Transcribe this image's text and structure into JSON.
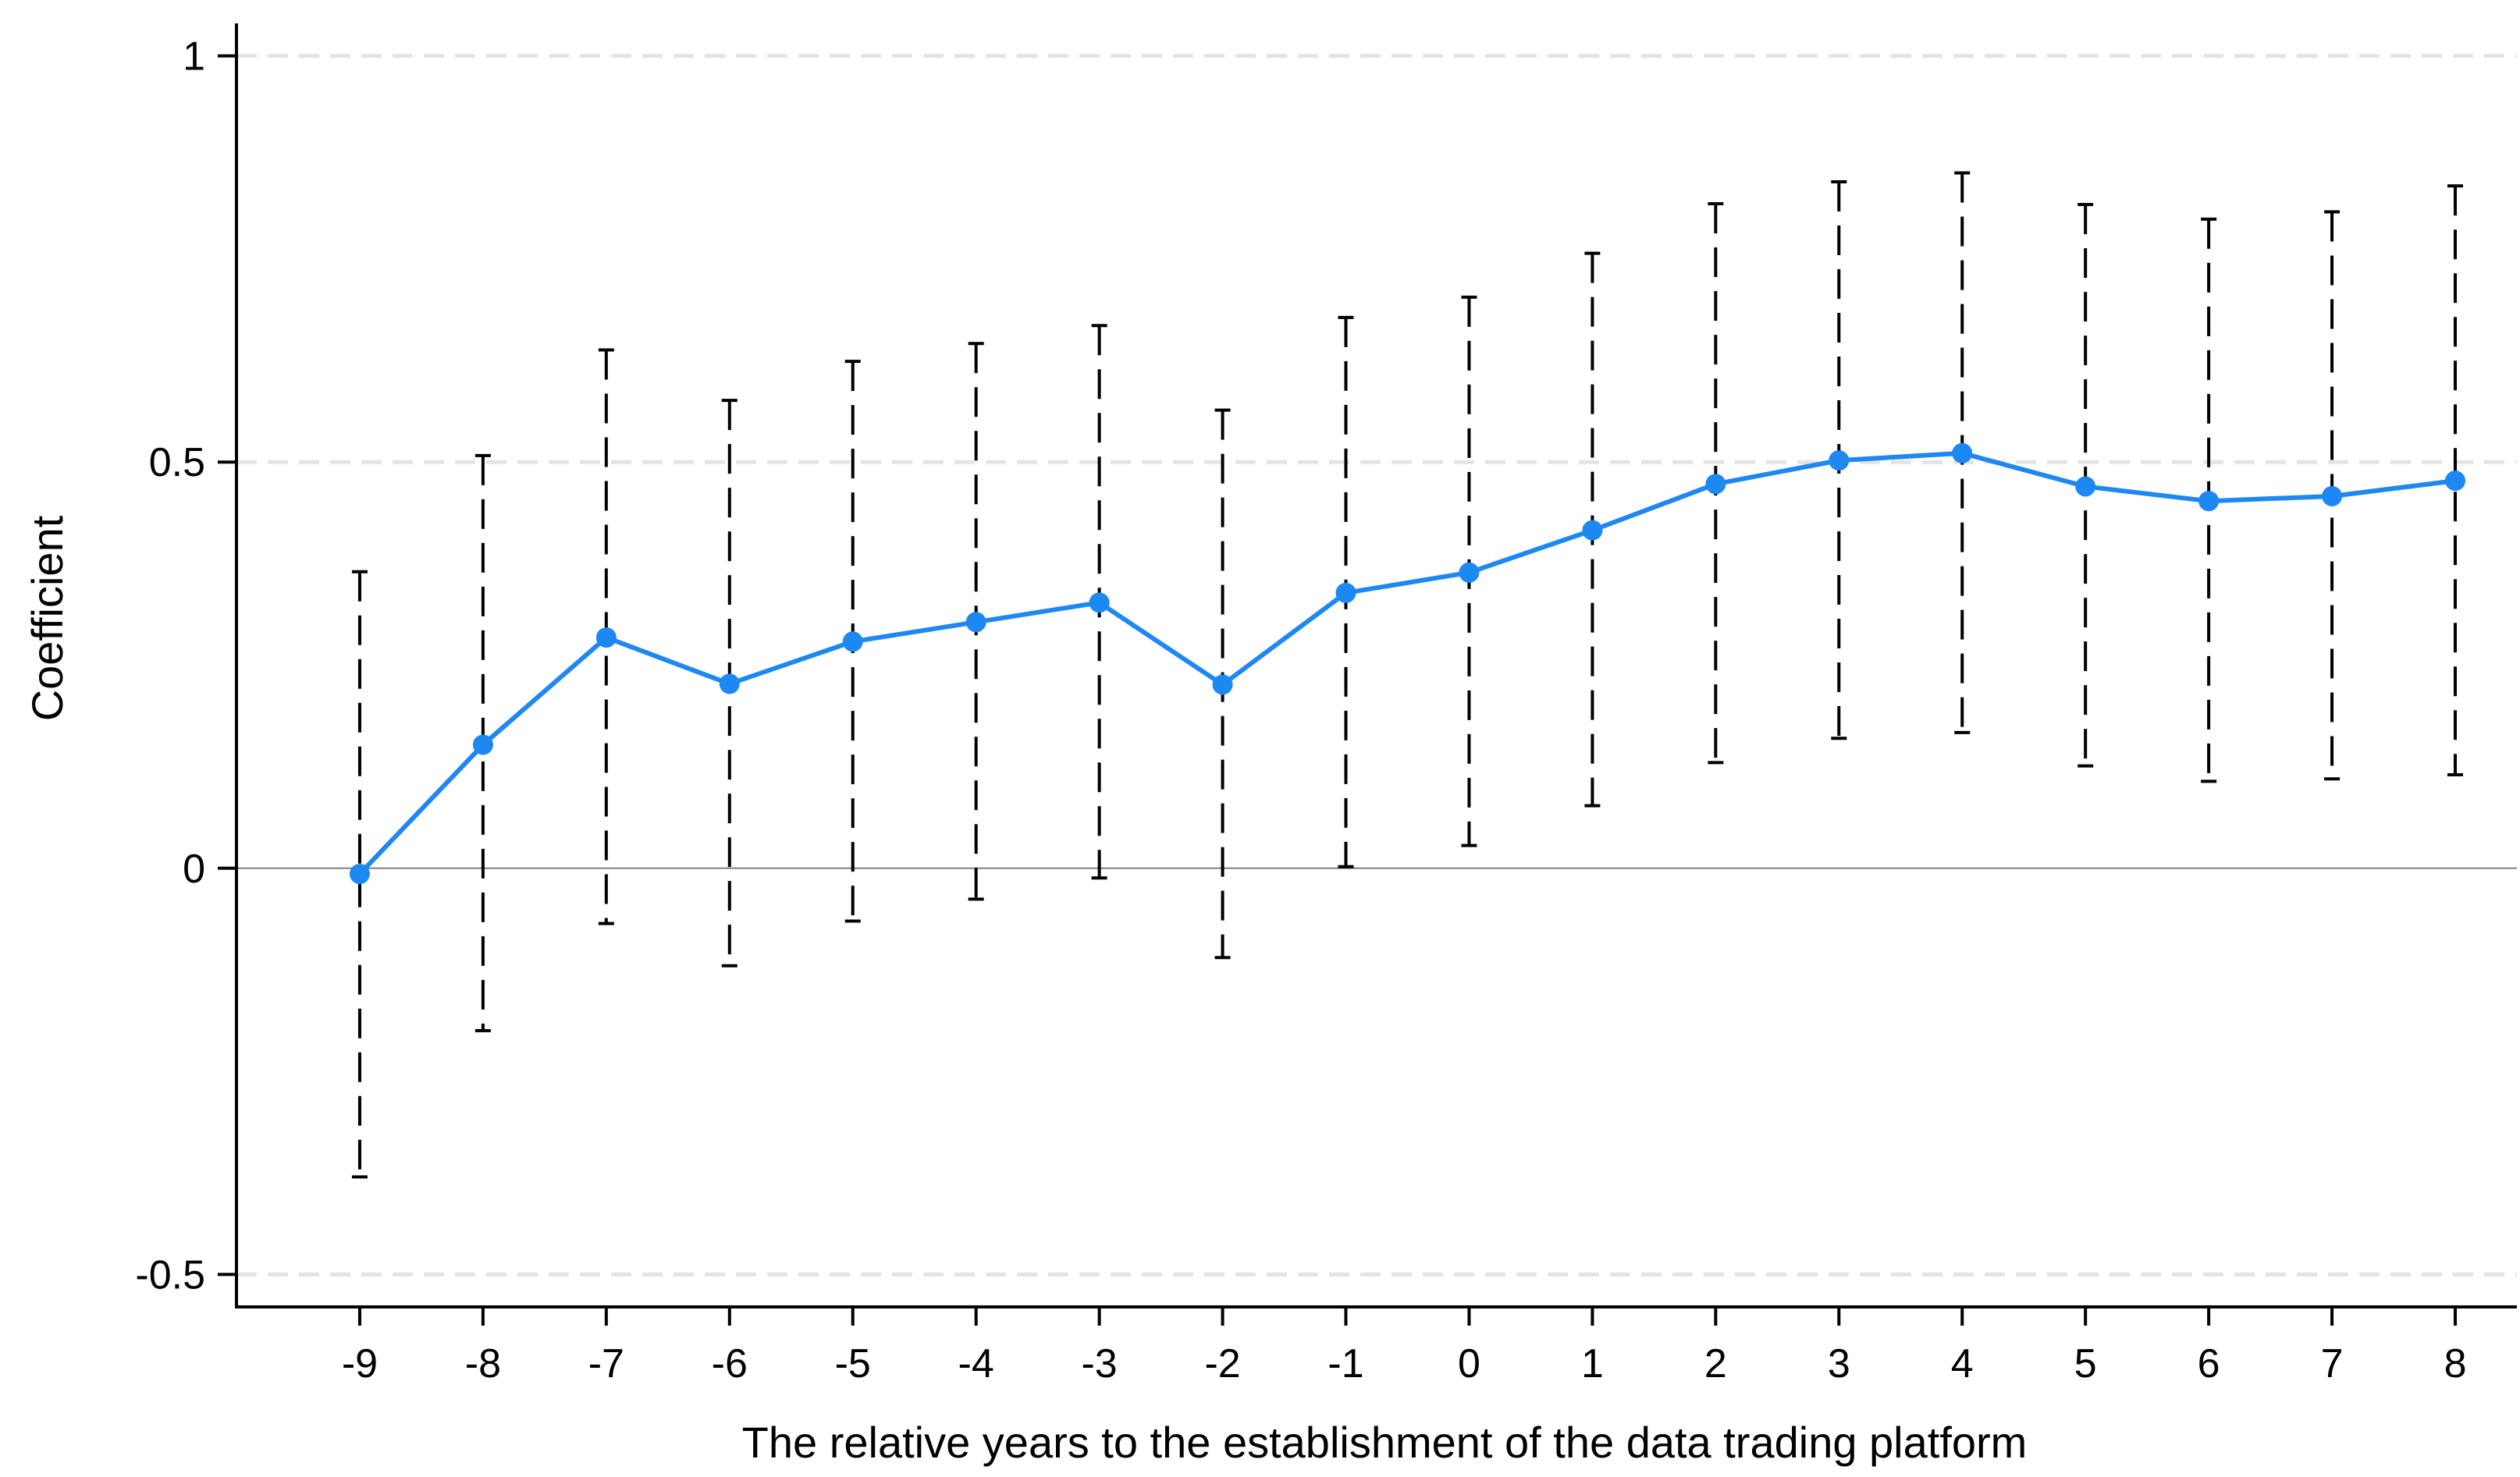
{
  "chart_data": {
    "type": "line",
    "xlabel": "The relative years to the establishment of the data trading platform",
    "ylabel": "Coefficient",
    "x": [
      -9,
      -8,
      -7,
      -6,
      -5,
      -4,
      -3,
      -2,
      -1,
      0,
      1,
      2,
      3,
      4,
      5,
      6,
      7,
      8
    ],
    "xticks": [
      "-9",
      "-8",
      "-7",
      "-6",
      "-5",
      "-4",
      "-3",
      "-2",
      "-1",
      "0",
      "1",
      "2",
      "3",
      "4",
      "5",
      "6",
      "7",
      "8"
    ],
    "yticks": [
      {
        "value": 1,
        "label": "1"
      },
      {
        "value": 0.5,
        "label": "0.5"
      },
      {
        "value": 0,
        "label": "0"
      },
      {
        "value": -0.5,
        "label": "-0.5"
      }
    ],
    "ylim": [
      -0.54,
      1.04
    ],
    "xlim": [
      -10,
      8.5
    ],
    "grid": "horizontal dashed",
    "reference_line": 0,
    "series": [
      {
        "values": [
          -0.007,
          0.152,
          0.284,
          0.227,
          0.279,
          0.303,
          0.327,
          0.226,
          0.339,
          0.364,
          0.416,
          0.473,
          0.502,
          0.511,
          0.47,
          0.452,
          0.458,
          0.477
        ],
        "ci_lower": [
          -0.38,
          -0.2,
          -0.068,
          -0.12,
          -0.065,
          -0.038,
          -0.012,
          -0.11,
          0.002,
          0.028,
          0.077,
          0.13,
          0.16,
          0.167,
          0.126,
          0.107,
          0.11,
          0.115
        ],
        "ci_upper": [
          0.365,
          0.508,
          0.638,
          0.576,
          0.624,
          0.646,
          0.668,
          0.564,
          0.678,
          0.703,
          0.757,
          0.818,
          0.845,
          0.856,
          0.817,
          0.799,
          0.808,
          0.84
        ]
      }
    ],
    "colors": {
      "line": "#1E88F2",
      "ci": "#000000",
      "axis": "#000000",
      "grid": "#E4E4E4",
      "zero_line": "#7F7F7F"
    }
  }
}
